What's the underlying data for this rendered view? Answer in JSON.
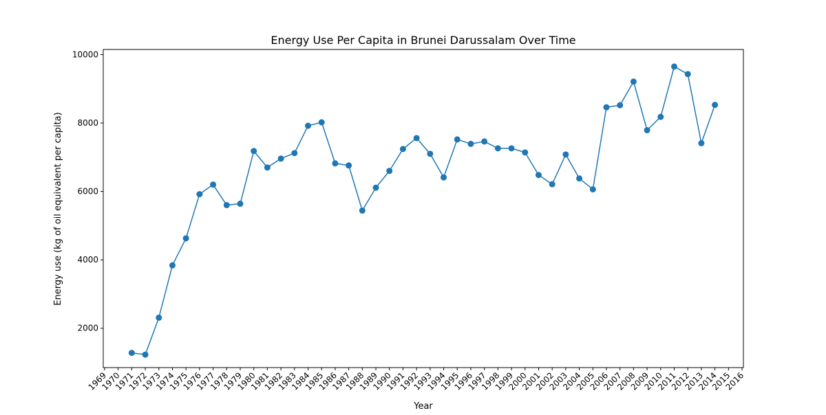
{
  "chart_data": {
    "type": "line",
    "title": "Energy Use Per Capita in Brunei Darussalam Over Time",
    "xlabel": "Year",
    "ylabel": "Energy use (kg of oil equivalent per capita)",
    "xlim": [
      1968.9,
      2016.1
    ],
    "ylim": [
      850,
      10150
    ],
    "xticks": [
      1969,
      1970,
      1971,
      1972,
      1973,
      1974,
      1975,
      1976,
      1977,
      1978,
      1979,
      1980,
      1981,
      1982,
      1983,
      1984,
      1985,
      1986,
      1987,
      1988,
      1989,
      1990,
      1991,
      1992,
      1993,
      1994,
      1995,
      1996,
      1997,
      1998,
      1999,
      2000,
      2001,
      2002,
      2003,
      2004,
      2005,
      2006,
      2007,
      2008,
      2009,
      2010,
      2011,
      2012,
      2013,
      2014,
      2015,
      2016
    ],
    "yticks": [
      2000,
      4000,
      6000,
      8000,
      10000
    ],
    "grid": false,
    "color": "#1f77b4",
    "series": [
      {
        "x": [
          1971,
          1972,
          1973,
          1974,
          1975,
          1976,
          1977,
          1978,
          1979,
          1980,
          1981,
          1982,
          1983,
          1984,
          1985,
          1986,
          1987,
          1988,
          1989,
          1990,
          1991,
          1992,
          1993,
          1994,
          1995,
          1996,
          1997,
          1998,
          1999,
          2000,
          2001,
          2002,
          2003,
          2004,
          2005,
          2006,
          2007,
          2008,
          2009,
          2010,
          2011,
          2012,
          2013,
          2014
        ],
        "y": [
          1280,
          1230,
          2310,
          3840,
          4630,
          5920,
          6200,
          5600,
          5640,
          7180,
          6700,
          6960,
          7120,
          7920,
          8020,
          6820,
          6760,
          5440,
          6110,
          6600,
          7240,
          7560,
          7100,
          6410,
          7520,
          7390,
          7460,
          7260,
          7260,
          7140,
          6480,
          6210,
          7080,
          6380,
          6060,
          8460,
          8520,
          9210,
          7790,
          8180,
          9650,
          9430,
          7410,
          8530
        ]
      }
    ]
  }
}
